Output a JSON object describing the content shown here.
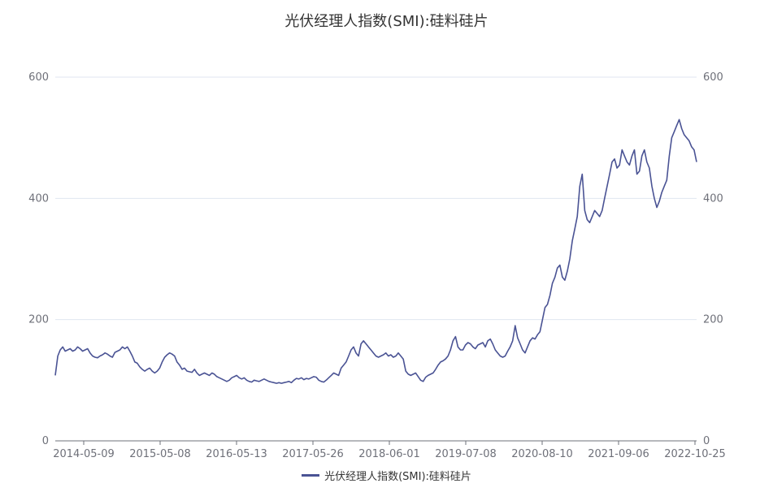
{
  "chart_data": {
    "type": "line",
    "title": "光伏经理人指数(SMI):硅料硅片",
    "series_name": "光伏经理人指数(SMI):硅料硅片",
    "line_color": "#4a5394",
    "x_tick_labels": [
      "2014-05-09",
      "2015-05-08",
      "2016-05-13",
      "2017-05-26",
      "2018-06-01",
      "2019-07-08",
      "2020-08-10",
      "2021-09-06",
      "2022-10-25"
    ],
    "y_ticks": [
      0,
      200,
      400,
      600
    ],
    "ylim": [
      0,
      600
    ],
    "legend_position": "bottom-center",
    "grid": true,
    "values": [
      108,
      140,
      150,
      155,
      148,
      150,
      152,
      148,
      150,
      155,
      152,
      148,
      150,
      152,
      145,
      140,
      138,
      137,
      140,
      142,
      145,
      143,
      140,
      138,
      146,
      148,
      150,
      155,
      152,
      155,
      148,
      140,
      130,
      128,
      122,
      118,
      115,
      118,
      120,
      115,
      112,
      115,
      120,
      130,
      138,
      142,
      145,
      143,
      140,
      130,
      125,
      118,
      120,
      115,
      114,
      113,
      118,
      112,
      108,
      110,
      112,
      110,
      108,
      112,
      110,
      106,
      104,
      102,
      100,
      98,
      100,
      104,
      106,
      108,
      104,
      102,
      104,
      100,
      98,
      97,
      100,
      99,
      98,
      100,
      102,
      100,
      98,
      97,
      96,
      95,
      96,
      95,
      96,
      97,
      98,
      96,
      100,
      103,
      102,
      104,
      101,
      103,
      102,
      104,
      106,
      105,
      100,
      98,
      97,
      100,
      104,
      108,
      112,
      110,
      108,
      120,
      125,
      130,
      140,
      150,
      155,
      145,
      140,
      160,
      165,
      160,
      155,
      150,
      145,
      140,
      138,
      140,
      142,
      145,
      140,
      142,
      138,
      140,
      145,
      140,
      135,
      115,
      110,
      108,
      110,
      112,
      106,
      100,
      98,
      105,
      108,
      110,
      112,
      118,
      125,
      130,
      132,
      135,
      140,
      150,
      165,
      172,
      155,
      150,
      150,
      158,
      162,
      160,
      155,
      152,
      158,
      160,
      162,
      155,
      165,
      168,
      160,
      150,
      145,
      140,
      138,
      140,
      148,
      155,
      165,
      190,
      170,
      160,
      150,
      145,
      155,
      165,
      170,
      168,
      175,
      180,
      200,
      220,
      225,
      240,
      260,
      270,
      285,
      290,
      270,
      265,
      280,
      300,
      330,
      350,
      370,
      420,
      440,
      380,
      365,
      360,
      370,
      380,
      375,
      370,
      380,
      400,
      420,
      440,
      460,
      465,
      450,
      455,
      480,
      470,
      460,
      455,
      470,
      480,
      440,
      445,
      470,
      480,
      460,
      450,
      420,
      400,
      385,
      395,
      410,
      420,
      430,
      470,
      500,
      510,
      520,
      530,
      515,
      505,
      500,
      495,
      485,
      480,
      460
    ]
  }
}
